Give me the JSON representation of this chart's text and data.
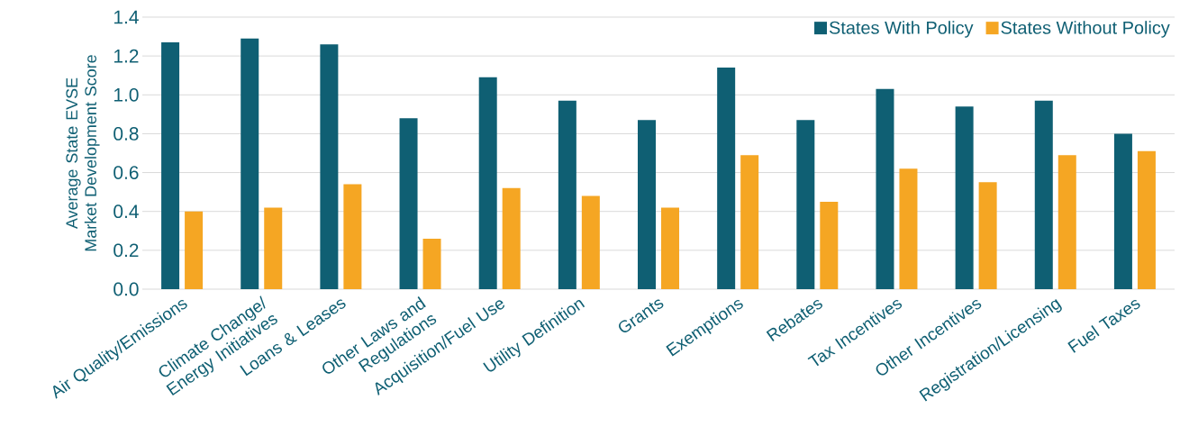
{
  "chart_data": {
    "type": "bar",
    "ylabel": "Average State EVSE Market Development Score",
    "categories": [
      "Air Quality/Emissions",
      "Climate Change/ Energy Initiatives",
      "Loans & Leases",
      "Other Laws and Regulations",
      "Acquisition/Fuel Use",
      "Utility Definition",
      "Grants",
      "Exemptions",
      "Rebates",
      "Tax Incentives",
      "Other Incentives",
      "Registration/Licensing",
      "Fuel Taxes"
    ],
    "series": [
      {
        "name": "States With Policy",
        "color": "#0f5f73",
        "values": [
          1.27,
          1.29,
          1.26,
          0.88,
          1.09,
          0.97,
          0.87,
          1.14,
          0.87,
          1.03,
          0.94,
          0.97,
          0.8
        ]
      },
      {
        "name": "States Without Policy",
        "color": "#f5a623",
        "values": [
          0.4,
          0.42,
          0.54,
          0.26,
          0.52,
          0.48,
          0.42,
          0.69,
          0.45,
          0.62,
          0.55,
          0.69,
          0.71
        ]
      }
    ],
    "ylim": [
      0,
      1.4
    ],
    "yticks": [
      {
        "value": 0,
        "label": "0.0"
      },
      {
        "value": 0.2,
        "label": "0.2"
      },
      {
        "value": 0.4,
        "label": "0.4"
      },
      {
        "value": 0.6,
        "label": "0.6"
      },
      {
        "value": 0.8,
        "label": "0.8"
      },
      {
        "value": 1,
        "label": "1.0"
      },
      {
        "value": 1.2,
        "label": "1.2"
      },
      {
        "value": 1.4,
        "label": "1.4"
      }
    ],
    "grid": "y",
    "legend": "top right"
  }
}
